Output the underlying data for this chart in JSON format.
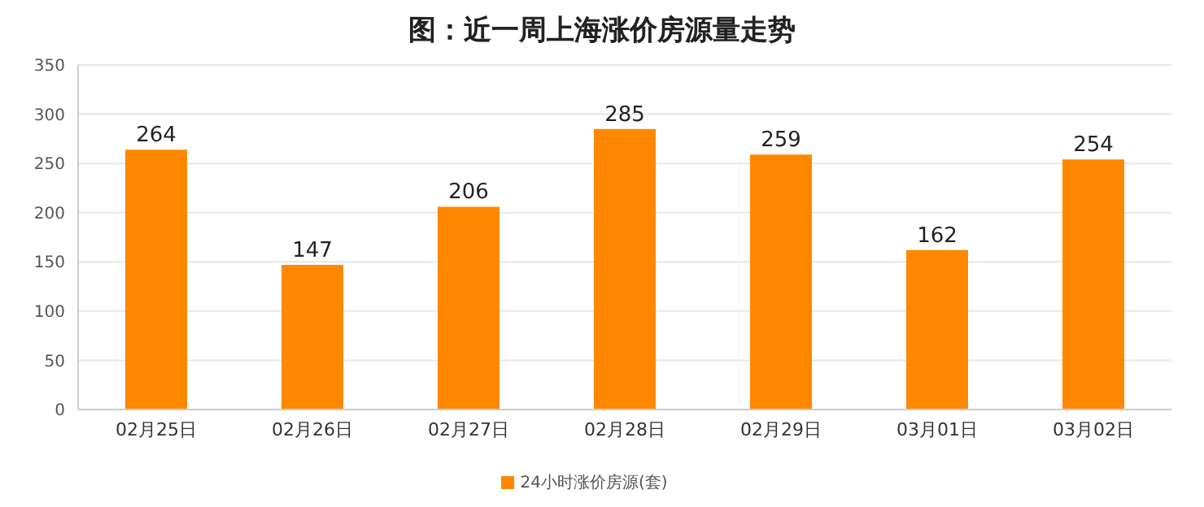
{
  "chart_data": {
    "type": "bar",
    "title": "图：近一周上海涨价房源量走势",
    "categories": [
      "02月25日",
      "02月26日",
      "02月27日",
      "02月28日",
      "02月29日",
      "03月01日",
      "03月02日"
    ],
    "series": [
      {
        "name": "24小时涨价房源(套)",
        "color": "#ff8800",
        "values": [
          264,
          147,
          206,
          285,
          259,
          162,
          254
        ]
      }
    ],
    "ylim": [
      0,
      350
    ],
    "yticks": [
      0,
      50,
      100,
      150,
      200,
      250,
      300,
      350
    ],
    "grid": "y",
    "legend": "bottom",
    "data_labels": true
  }
}
